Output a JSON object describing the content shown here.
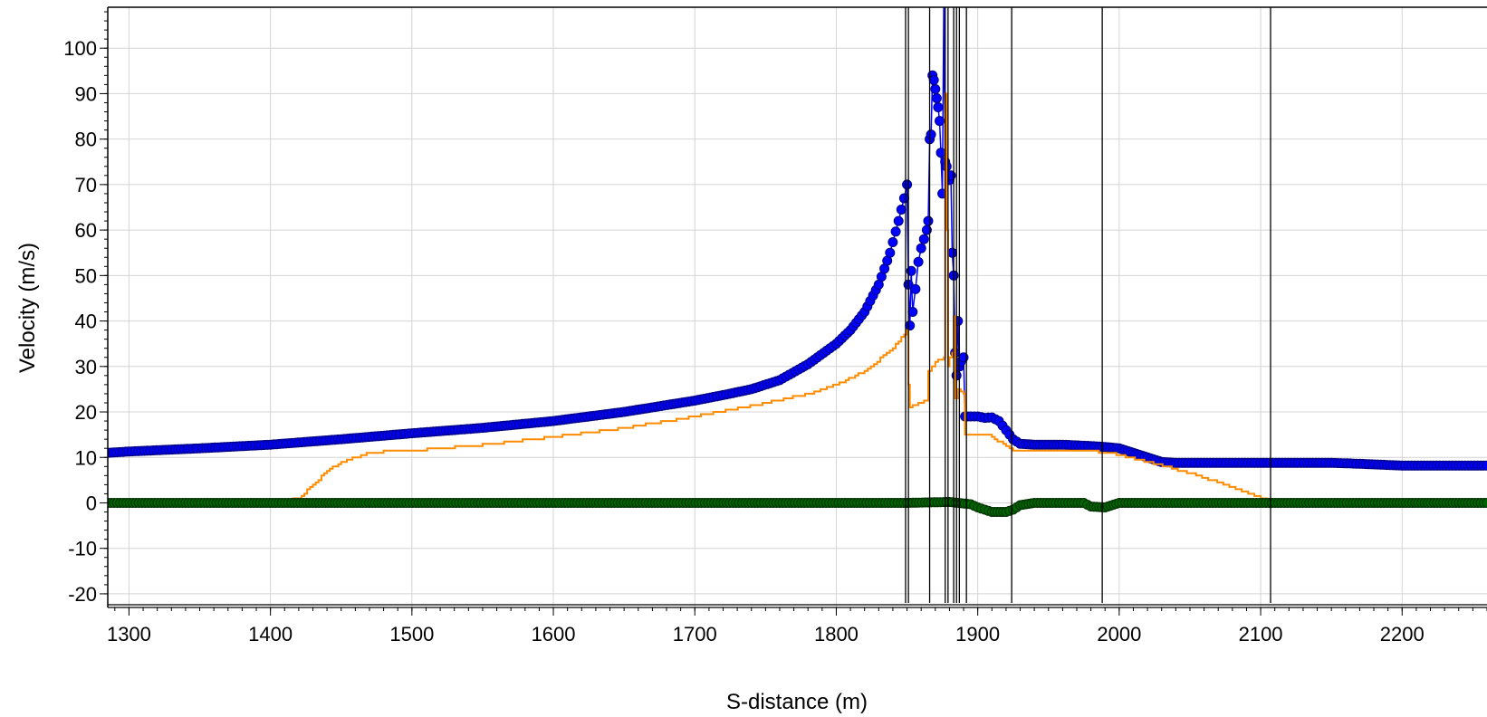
{
  "chart_data": {
    "type": "scatter",
    "title": "",
    "xlabel": "S-distance (m)",
    "ylabel": "Velocity (m/s)",
    "xlim": [
      1285,
      2260
    ],
    "ylim": [
      -23,
      109
    ],
    "x_ticks": [
      1300,
      1400,
      1500,
      1600,
      1700,
      1800,
      1900,
      2000,
      2100,
      2200
    ],
    "y_ticks": [
      100,
      90,
      80,
      70,
      60,
      50,
      40,
      30,
      20,
      10,
      0,
      -10,
      -20
    ],
    "grid": true,
    "legend": "none",
    "vertical_markers": [
      1849,
      1851,
      1866,
      1877,
      1879,
      1883,
      1885,
      1887,
      1892,
      1924,
      1988,
      2107
    ],
    "series": [
      {
        "style": "markers-line",
        "color": "#0000ff",
        "marker_color": "#0000ff",
        "marker_edge": "#000080",
        "points": [
          [
            1285,
            11
          ],
          [
            1300,
            11.3
          ],
          [
            1350,
            12
          ],
          [
            1400,
            12.8
          ],
          [
            1450,
            14
          ],
          [
            1500,
            15.3
          ],
          [
            1550,
            16.5
          ],
          [
            1600,
            18
          ],
          [
            1650,
            20
          ],
          [
            1700,
            22.5
          ],
          [
            1720,
            23.7
          ],
          [
            1740,
            25
          ],
          [
            1760,
            27
          ],
          [
            1780,
            30.5
          ],
          [
            1800,
            35
          ],
          [
            1810,
            38
          ],
          [
            1820,
            42
          ],
          [
            1830,
            48
          ],
          [
            1838,
            55
          ],
          [
            1844,
            62
          ],
          [
            1848,
            67
          ],
          [
            1850,
            70
          ],
          [
            1851,
            48
          ],
          [
            1852,
            39
          ],
          [
            1853,
            51
          ],
          [
            1854,
            42
          ],
          [
            1856,
            47
          ],
          [
            1858,
            53
          ],
          [
            1860,
            56
          ],
          [
            1862,
            58
          ],
          [
            1864,
            60
          ],
          [
            1865,
            62
          ],
          [
            1866,
            80
          ],
          [
            1867,
            81
          ],
          [
            1868,
            94
          ],
          [
            1869,
            93
          ],
          [
            1870,
            91
          ],
          [
            1871,
            89
          ],
          [
            1872,
            87
          ],
          [
            1873,
            84
          ],
          [
            1874,
            77
          ],
          [
            1875,
            68
          ],
          [
            1876,
            110
          ],
          [
            1877,
            75
          ],
          [
            1878,
            74
          ],
          [
            1880,
            71
          ],
          [
            1881,
            72
          ],
          [
            1882,
            55
          ],
          [
            1883,
            50
          ],
          [
            1884,
            33
          ],
          [
            1885,
            28
          ],
          [
            1886,
            40
          ],
          [
            1887,
            30
          ],
          [
            1888,
            31
          ],
          [
            1890,
            32
          ],
          [
            1891,
            19
          ],
          [
            1895,
            19
          ],
          [
            1900,
            19
          ],
          [
            1905,
            18.7
          ],
          [
            1910,
            18.8
          ],
          [
            1915,
            18
          ],
          [
            1920,
            16
          ],
          [
            1925,
            14
          ],
          [
            1930,
            13
          ],
          [
            1940,
            12.8
          ],
          [
            1950,
            12.8
          ],
          [
            1960,
            12.8
          ],
          [
            1980,
            12.5
          ],
          [
            1990,
            12.3
          ],
          [
            2000,
            12
          ],
          [
            2010,
            11
          ],
          [
            2020,
            10
          ],
          [
            2030,
            9
          ],
          [
            2040,
            8.8
          ],
          [
            2100,
            8.8
          ],
          [
            2150,
            8.8
          ],
          [
            2170,
            8.6
          ],
          [
            2200,
            8.2
          ],
          [
            2260,
            8.2
          ]
        ]
      },
      {
        "style": "line",
        "color": "#ff8c00",
        "points": [
          [
            1285,
            0.5
          ],
          [
            1410,
            0.5
          ],
          [
            1420,
            1
          ],
          [
            1430,
            4
          ],
          [
            1440,
            7
          ],
          [
            1450,
            9
          ],
          [
            1460,
            10
          ],
          [
            1470,
            11
          ],
          [
            1480,
            11.3
          ],
          [
            1500,
            11.5
          ],
          [
            1550,
            12.8
          ],
          [
            1600,
            14.5
          ],
          [
            1650,
            16.5
          ],
          [
            1700,
            19
          ],
          [
            1750,
            22
          ],
          [
            1780,
            24
          ],
          [
            1800,
            26
          ],
          [
            1820,
            29
          ],
          [
            1840,
            34
          ],
          [
            1848,
            37
          ],
          [
            1850,
            38
          ],
          [
            1851,
            26
          ],
          [
            1852,
            21
          ],
          [
            1860,
            22
          ],
          [
            1864,
            22.5
          ],
          [
            1865,
            29
          ],
          [
            1870,
            31
          ],
          [
            1876,
            32
          ],
          [
            1877,
            90
          ],
          [
            1878,
            60
          ],
          [
            1879,
            30
          ],
          [
            1880,
            32
          ],
          [
            1882,
            33
          ],
          [
            1883,
            41
          ],
          [
            1884,
            23
          ],
          [
            1886,
            25
          ],
          [
            1890,
            24
          ],
          [
            1891,
            15
          ],
          [
            1900,
            15
          ],
          [
            1905,
            15
          ],
          [
            1910,
            14.5
          ],
          [
            1920,
            12.5
          ],
          [
            1925,
            11.5
          ],
          [
            1950,
            11.5
          ],
          [
            1990,
            11.2
          ],
          [
            2000,
            10.5
          ],
          [
            2020,
            9
          ],
          [
            2050,
            6.5
          ],
          [
            2080,
            3.5
          ],
          [
            2100,
            1.2
          ],
          [
            2107,
            0.5
          ],
          [
            2260,
            0.5
          ]
        ]
      },
      {
        "style": "markers-line",
        "color": "#006400",
        "marker_color": "#006400",
        "marker_edge": "#003000",
        "points": [
          [
            1285,
            0
          ],
          [
            1850,
            0
          ],
          [
            1880,
            0.2
          ],
          [
            1895,
            -0.3
          ],
          [
            1900,
            -1
          ],
          [
            1905,
            -1.5
          ],
          [
            1910,
            -2
          ],
          [
            1920,
            -2
          ],
          [
            1925,
            -1.5
          ],
          [
            1930,
            -0.5
          ],
          [
            1940,
            0
          ],
          [
            1975,
            0
          ],
          [
            1980,
            -0.8
          ],
          [
            1990,
            -1
          ],
          [
            2000,
            0
          ],
          [
            2260,
            0
          ]
        ]
      }
    ]
  }
}
